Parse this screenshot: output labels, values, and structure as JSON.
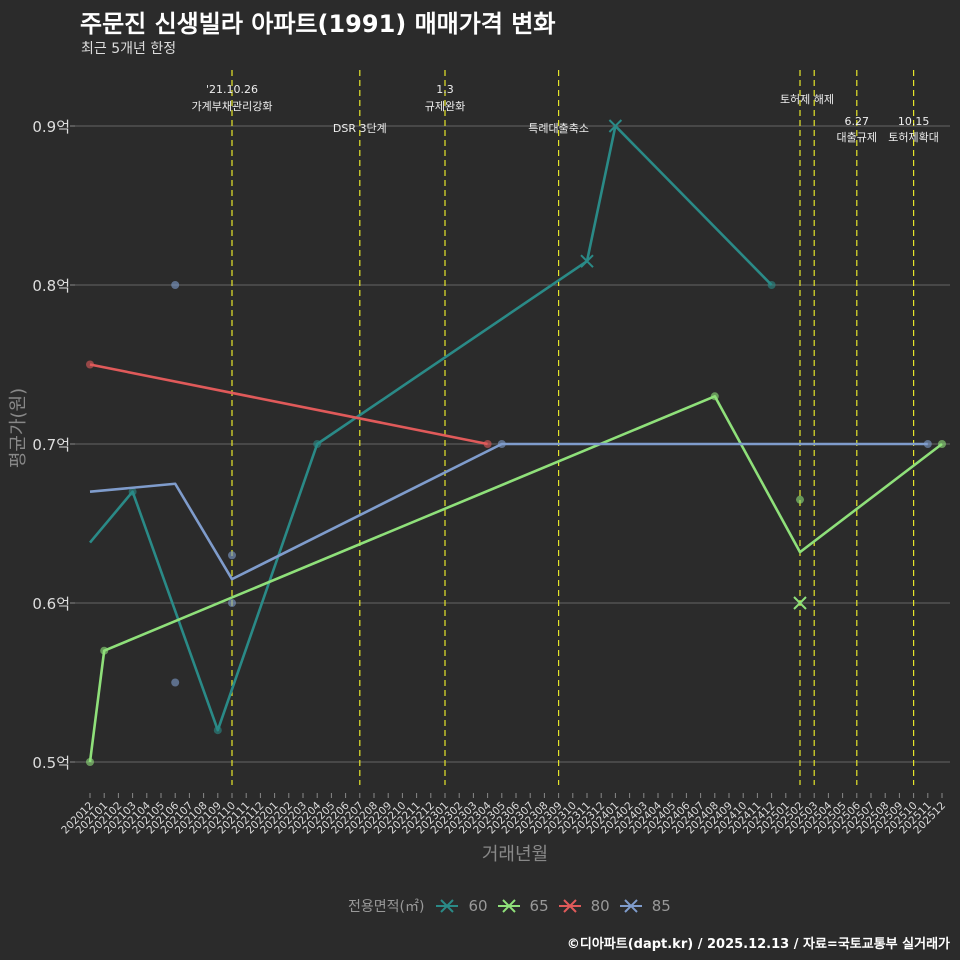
{
  "title": "주문진 신생빌라 아파트(1991) 매매가격 변화",
  "subtitle": "최근 5개년 한정",
  "caption": "©디아파트(dapt.kr) / 2025.12.13 / 자료=국토교통부 실거래가",
  "chart_data": {
    "type": "line",
    "title": "주문진 신생빌라 아파트(1991) 매매가격 변화",
    "xlabel": "거래년월",
    "ylabel": "평균가(원)",
    "ylim": [
      0.48,
      0.935
    ],
    "yticks": [
      0.5,
      0.6,
      0.7,
      0.8,
      0.9
    ],
    "ytick_labels": [
      "0.5억",
      "0.6억",
      "0.7억",
      "0.8억",
      "0.9억"
    ],
    "categories": [
      "202012",
      "202101",
      "202102",
      "202103",
      "202104",
      "202105",
      "202106",
      "202107",
      "202108",
      "202109",
      "202110",
      "202111",
      "202112",
      "202201",
      "202202",
      "202203",
      "202204",
      "202205",
      "202206",
      "202207",
      "202208",
      "202209",
      "202210",
      "202211",
      "202212",
      "202301",
      "202302",
      "202303",
      "202304",
      "202305",
      "202306",
      "202307",
      "202308",
      "202309",
      "202310",
      "202311",
      "202312",
      "202401",
      "202402",
      "202403",
      "202404",
      "202405",
      "202406",
      "202407",
      "202408",
      "202409",
      "202410",
      "202411",
      "202412",
      "202501",
      "202502",
      "202503",
      "202504",
      "202505",
      "202506",
      "202507",
      "202508",
      "202509",
      "202510",
      "202511",
      "202512"
    ],
    "legend_title": "전용면적(㎡)",
    "legend_position": "bottom",
    "series": [
      {
        "name": "60",
        "color": "#2a8a87",
        "line": [
          [
            "202012",
            0.638
          ],
          [
            "202103",
            0.67
          ],
          [
            "202109",
            0.52
          ],
          [
            "202204",
            0.7
          ],
          [
            "202311",
            0.815
          ],
          [
            "202401",
            0.9
          ],
          [
            "202412",
            0.8
          ]
        ],
        "points": [
          [
            "202103",
            0.67
          ],
          [
            "202109",
            0.52
          ],
          [
            "202204",
            0.7
          ],
          [
            "202412",
            0.8
          ]
        ],
        "x_markers": [
          [
            "202311",
            0.815
          ],
          [
            "202401",
            0.9
          ]
        ]
      },
      {
        "name": "65",
        "color": "#8fe07a",
        "line": [
          [
            "202012",
            0.5
          ],
          [
            "202101",
            0.57
          ],
          [
            "202408",
            0.73
          ],
          [
            "202502",
            0.632
          ],
          [
            "202512",
            0.7
          ]
        ],
        "points": [
          [
            "202012",
            0.5
          ],
          [
            "202101",
            0.57
          ],
          [
            "202408",
            0.73
          ],
          [
            "202502",
            0.665
          ],
          [
            "202512",
            0.7
          ]
        ],
        "x_markers": [
          [
            "202502",
            0.6
          ]
        ]
      },
      {
        "name": "80",
        "color": "#e05a5a",
        "line": [
          [
            "202012",
            0.75
          ],
          [
            "202304",
            0.7
          ]
        ],
        "points": [
          [
            "202012",
            0.75
          ],
          [
            "202304",
            0.7
          ]
        ],
        "x_markers": []
      },
      {
        "name": "85",
        "color": "#7f9ccc",
        "line": [
          [
            "202012",
            0.67
          ],
          [
            "202106",
            0.675
          ],
          [
            "202110",
            0.615
          ],
          [
            "202305",
            0.7
          ],
          [
            "202511",
            0.7
          ]
        ],
        "points": [
          [
            "202106",
            0.8
          ],
          [
            "202106",
            0.55
          ],
          [
            "202110",
            0.63
          ],
          [
            "202110",
            0.6
          ],
          [
            "202305",
            0.7
          ],
          [
            "202511",
            0.7
          ]
        ],
        "x_markers": []
      }
    ],
    "annotations": [
      {
        "month": "202110",
        "lines": [
          "'21.10.26",
          "가계부채관리강화"
        ]
      },
      {
        "month": "202207",
        "lines": [
          "DSR 3단계"
        ]
      },
      {
        "month": "202301",
        "lines": [
          "1.3",
          "규제완화"
        ]
      },
      {
        "month": "202309",
        "lines": [
          "특례대출축소"
        ]
      },
      {
        "month": "202502",
        "lines": [
          "토허제 해제"
        ]
      },
      {
        "month": "202503",
        "lines": []
      },
      {
        "month": "202506",
        "lines": [
          "6.27",
          "대출규제"
        ]
      },
      {
        "month": "202510",
        "lines": [
          "10.15",
          "토허제확대"
        ]
      }
    ]
  }
}
